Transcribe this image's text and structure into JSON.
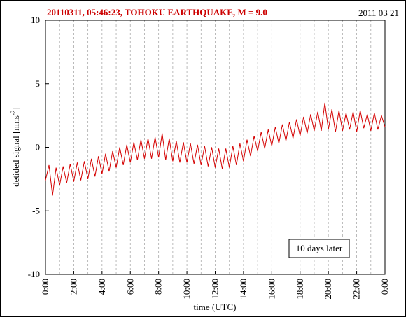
{
  "chart_data": {
    "type": "line",
    "title": "20110311, 05:46:23, TOHOKU EARTHQUAKE, M = 9.0",
    "date_label": "2011 03 21",
    "xlabel": "time (UTC)",
    "ylabel": "detided signal [nms",
    "ylabel_sup": "-2",
    "ylabel_close": "]",
    "annotation": "10 days later",
    "x_ticks": [
      "0:00",
      "2:00",
      "4:00",
      "6:00",
      "8:00",
      "10:00",
      "12:00",
      "14:00",
      "16:00",
      "18:00",
      "20:00",
      "22:00",
      "0:00"
    ],
    "y_ticks": [
      "10",
      "5",
      "0",
      "-5",
      "-10"
    ],
    "xlim": [
      0,
      24
    ],
    "ylim": [
      -10,
      10
    ],
    "grid": "vertical dashed",
    "colors": {
      "series": "#d40000",
      "title": "#cc0000",
      "grid": "#aaaaaa"
    },
    "series": [
      {
        "x": [
          0,
          0.25,
          0.5,
          0.75,
          1,
          1.25,
          1.5,
          1.75,
          2,
          2.25,
          2.5,
          2.75,
          3,
          3.25,
          3.5,
          3.75,
          4,
          4.25,
          4.5,
          4.75,
          5,
          5.25,
          5.5,
          5.75,
          6,
          6.25,
          6.5,
          6.75,
          7,
          7.25,
          7.5,
          7.75,
          8,
          8.25,
          8.5,
          8.75,
          9,
          9.25,
          9.5,
          9.75,
          10,
          10.25,
          10.5,
          10.75,
          11,
          11.25,
          11.5,
          11.75,
          12,
          12.25,
          12.5,
          12.75,
          13,
          13.25,
          13.5,
          13.75,
          14,
          14.25,
          14.5,
          14.75,
          15,
          15.25,
          15.5,
          15.75,
          16,
          16.25,
          16.5,
          16.75,
          17,
          17.25,
          17.5,
          17.75,
          18,
          18.25,
          18.5,
          18.75,
          19,
          19.25,
          19.5,
          19.75,
          20,
          20.25,
          20.5,
          20.75,
          21,
          21.25,
          21.5,
          21.75,
          22,
          22.25,
          22.5,
          22.75,
          23,
          23.25,
          23.5,
          23.75,
          24
        ],
        "y": [
          -2.6,
          -1.4,
          -3.8,
          -1.6,
          -3.0,
          -1.5,
          -2.8,
          -1.3,
          -2.7,
          -1.2,
          -2.6,
          -1.1,
          -2.5,
          -0.9,
          -2.3,
          -0.7,
          -2.1,
          -0.5,
          -1.9,
          -0.3,
          -1.6,
          0.0,
          -1.4,
          0.2,
          -1.2,
          0.4,
          -1.0,
          0.6,
          -0.9,
          0.7,
          -0.9,
          0.8,
          -0.8,
          1.1,
          -1.0,
          0.7,
          -1.1,
          0.5,
          -1.2,
          0.4,
          -1.2,
          0.3,
          -1.3,
          0.2,
          -1.4,
          0.1,
          -1.5,
          0.0,
          -1.6,
          -0.1,
          -1.7,
          -0.1,
          -1.6,
          0.1,
          -1.4,
          0.3,
          -1.1,
          0.6,
          -0.7,
          0.9,
          -0.3,
          1.2,
          -0.1,
          1.4,
          0.1,
          1.6,
          0.3,
          1.8,
          0.5,
          2.0,
          0.7,
          2.2,
          0.9,
          2.4,
          1.1,
          2.6,
          1.3,
          2.8,
          1.3,
          3.5,
          1.4,
          3.0,
          1.2,
          2.9,
          1.3,
          2.7,
          1.4,
          2.8,
          1.2,
          2.9,
          1.5,
          2.6,
          1.3,
          2.7,
          1.4,
          2.5,
          1.6
        ]
      }
    ]
  }
}
